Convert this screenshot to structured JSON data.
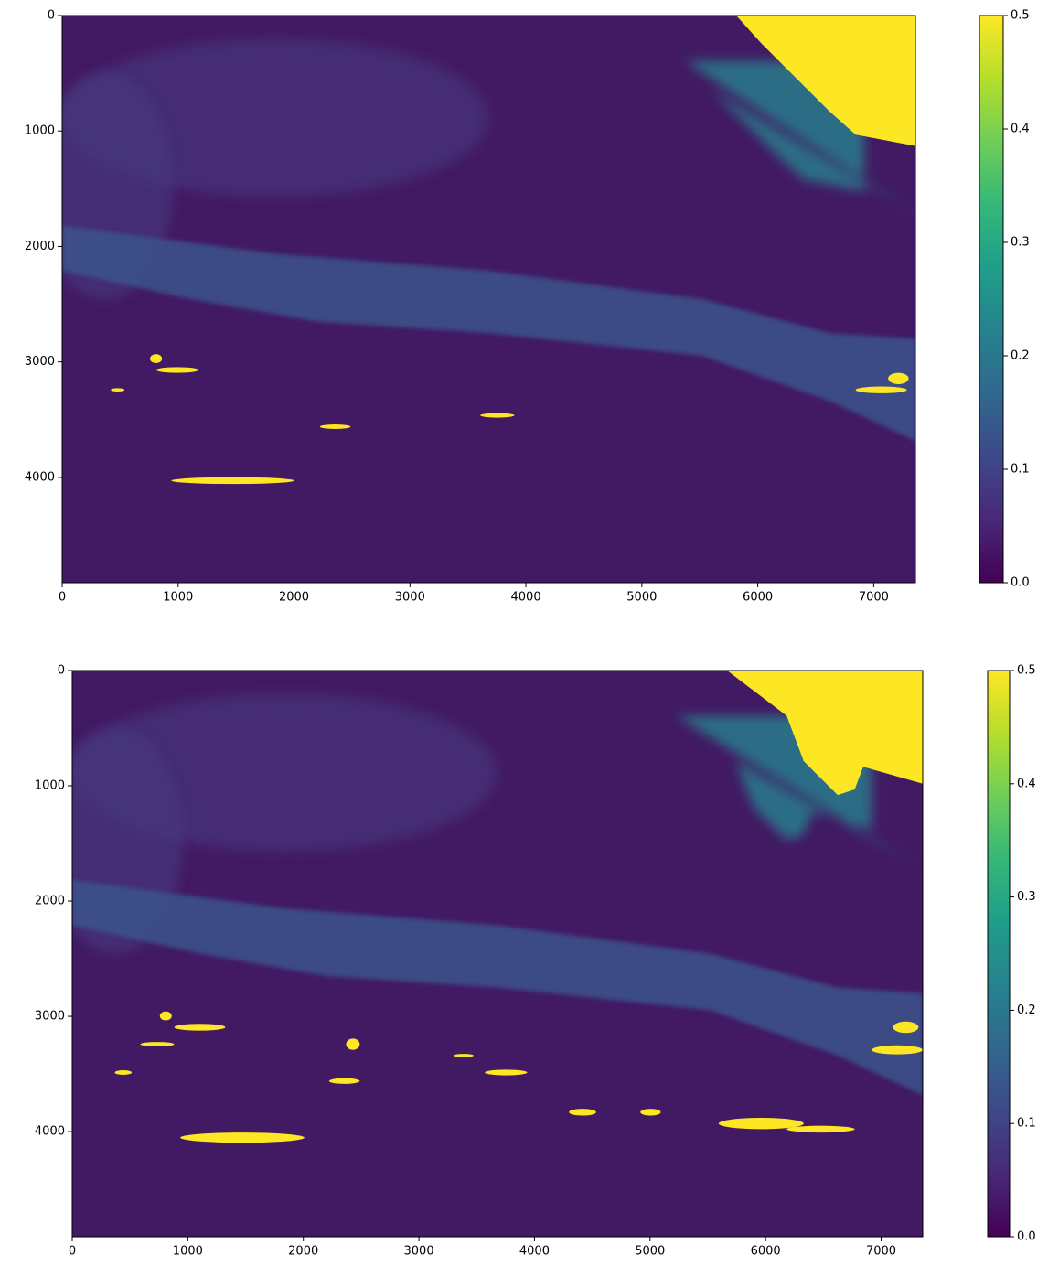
{
  "chart_data": [
    {
      "type": "image",
      "colormap": "viridis",
      "xlim": [
        0,
        7360
      ],
      "ylim": [
        4912,
        0
      ],
      "xticks": [
        0,
        1000,
        2000,
        3000,
        4000,
        5000,
        6000,
        7000
      ],
      "yticks": [
        0,
        1000,
        2000,
        3000,
        4000
      ],
      "clim": [
        0,
        0.5
      ],
      "cticks": [
        {
          "value": 0,
          "label": "0.0"
        },
        0.1,
        0.2,
        0.3,
        0.4,
        0.5
      ]
    },
    {
      "type": "image",
      "colormap": "viridis",
      "xlim": [
        0,
        7360
      ],
      "ylim": [
        4912,
        0
      ],
      "xticks": [
        0,
        1000,
        2000,
        3000,
        4000,
        5000,
        6000,
        7000
      ],
      "yticks": [
        0,
        1000,
        2000,
        3000,
        4000
      ],
      "clim": [
        0,
        0.5
      ],
      "cticks": [
        {
          "value": 0,
          "label": "0.0"
        },
        0.1,
        0.2,
        0.3,
        0.4,
        0.5
      ]
    }
  ]
}
